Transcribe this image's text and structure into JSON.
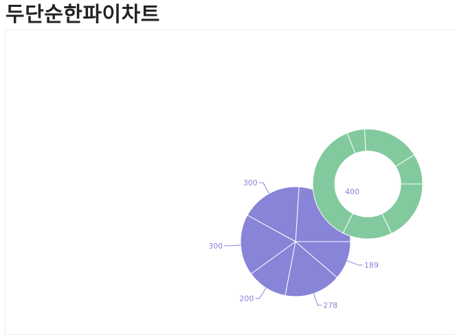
{
  "page": {
    "title": "두단순한파이차트"
  },
  "colors": {
    "pie_fill": "#8884d8",
    "donut_fill": "#82ca9d",
    "label_color": "#8884d8",
    "slice_stroke": "#ffffff"
  },
  "chart_data": [
    {
      "type": "pie",
      "series_name": "",
      "values": [
        400,
        300,
        300,
        200,
        278,
        189
      ],
      "labels_shown": [
        "",
        "300",
        "300",
        "200",
        "278",
        "189"
      ],
      "color": "#8884d8",
      "start_angle_deg": 0,
      "end_angle_deg": 360,
      "inner_radius_ratio": 0,
      "label_lines": true
    },
    {
      "type": "pie",
      "variant": "donut",
      "series_name": "",
      "values": [
        2400,
        4567,
        1398,
        9800,
        3908,
        4800
      ],
      "color": "#82ca9d",
      "start_angle_deg": 0,
      "end_angle_deg": 360,
      "inner_radius_ratio": 0.6,
      "label_lines": false,
      "labels_shown": []
    }
  ],
  "annotations": {
    "donut_center_label": "400"
  }
}
